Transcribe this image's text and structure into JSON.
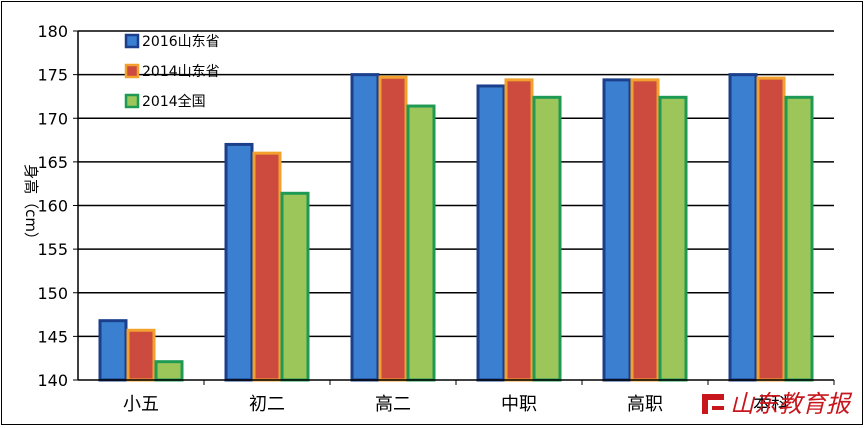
{
  "chart_data": {
    "type": "bar",
    "ylabel": "身高（cm）",
    "xlabel": "",
    "title": "",
    "ylim": [
      140,
      180
    ],
    "yticks": [
      140,
      145,
      150,
      155,
      160,
      165,
      170,
      175,
      180
    ],
    "grid": true,
    "legend_position": "top-left",
    "categories": [
      "小五",
      "初二",
      "高二",
      "中职",
      "高职",
      "本科"
    ],
    "series": [
      {
        "name": "2016山东省",
        "values": [
          146.8,
          167.0,
          175.0,
          173.7,
          174.4,
          175.0
        ],
        "color": "#3a7fd0",
        "edge": "#1c3f8c"
      },
      {
        "name": "2014山东省",
        "values": [
          145.7,
          166.0,
          174.7,
          174.4,
          174.4,
          174.6
        ],
        "color": "#cc4a3e",
        "edge": "#f2a12e"
      },
      {
        "name": "2014全国",
        "values": [
          142.1,
          161.4,
          171.4,
          172.4,
          172.4,
          172.4
        ],
        "color": "#9cc65a",
        "edge": "#1f9a55"
      }
    ]
  },
  "watermark": {
    "text": "山东教育报",
    "color": "#c8161d"
  }
}
